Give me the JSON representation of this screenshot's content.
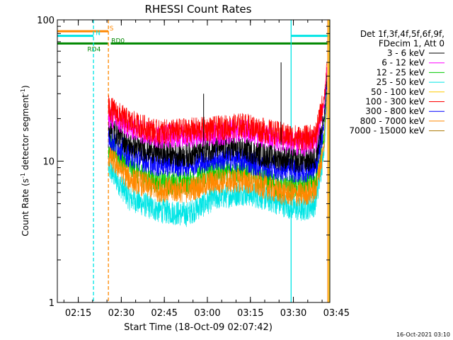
{
  "chart_data": {
    "type": "line",
    "title": "RHESSI Count Rates",
    "xlabel": "Start Time (18-Oct-09 02:07:42)",
    "ylabel": "Count Rate (s",
    "ylabel_sup": "-1",
    "ylabel_mid": " detector segment",
    "ylabel_sup2": "-1",
    "ylabel_end": ")",
    "y_scale": "log",
    "ylim": [
      1,
      100
    ],
    "xlim_minutes": [
      0,
      95
    ],
    "x_ticks": [
      {
        "label": "02:15",
        "minute": 7.3
      },
      {
        "label": "02:30",
        "minute": 22.3
      },
      {
        "label": "02:45",
        "minute": 37.3
      },
      {
        "label": "03:00",
        "minute": 52.3
      },
      {
        "label": "03:15",
        "minute": 67.3
      },
      {
        "label": "03:30",
        "minute": 82.3
      },
      {
        "label": "03:45",
        "minute": 97.3
      }
    ],
    "y_ticks": [
      {
        "label": "1",
        "value": 1
      },
      {
        "label": "10",
        "value": 10
      },
      {
        "label": "100",
        "value": 100
      }
    ],
    "legend_header": [
      "Det 1f,3f,4f,5f,6f,9f,",
      "FDecim 1, Att 0"
    ],
    "legend_placement": "right",
    "series": [
      {
        "name": "3 - 6 keV",
        "color": "#000000",
        "key_points": [
          [
            17.8,
            18
          ],
          [
            25,
            13
          ],
          [
            35,
            11.5
          ],
          [
            45,
            11
          ],
          [
            55,
            12.5
          ],
          [
            65,
            12.2
          ],
          [
            72,
            11
          ],
          [
            78,
            10.5
          ],
          [
            85,
            10
          ],
          [
            90,
            10.5
          ],
          [
            93,
            20
          ],
          [
            94,
            40
          ]
        ]
      },
      {
        "name": "6 - 12 keV",
        "color": "#ff00ff",
        "key_points": [
          [
            17.8,
            21
          ],
          [
            25,
            17.5
          ],
          [
            35,
            15
          ],
          [
            45,
            15.2
          ],
          [
            55,
            15.5
          ],
          [
            65,
            16.5
          ],
          [
            72,
            15
          ],
          [
            78,
            14
          ],
          [
            85,
            13
          ],
          [
            90,
            14
          ],
          [
            93,
            25
          ],
          [
            94,
            45
          ]
        ]
      },
      {
        "name": "12 - 25 keV",
        "color": "#00cc00",
        "key_points": [
          [
            17.8,
            13
          ],
          [
            25,
            9
          ],
          [
            35,
            7
          ],
          [
            45,
            7
          ],
          [
            55,
            8.5
          ],
          [
            65,
            8.5
          ],
          [
            72,
            7.5
          ],
          [
            78,
            6.5
          ],
          [
            85,
            6.5
          ],
          [
            90,
            7
          ],
          [
            93,
            15
          ],
          [
            94,
            30
          ]
        ]
      },
      {
        "name": "25 - 50 keV",
        "color": "#00e5e5",
        "key_points": [
          [
            17.8,
            9
          ],
          [
            25,
            5.5
          ],
          [
            35,
            4.5
          ],
          [
            45,
            4.2
          ],
          [
            55,
            5.5
          ],
          [
            65,
            6
          ],
          [
            72,
            5.5
          ],
          [
            78,
            5
          ],
          [
            85,
            4.5
          ],
          [
            90,
            5
          ],
          [
            93,
            12
          ],
          [
            94,
            25
          ]
        ]
      },
      {
        "name": "50 - 100 keV",
        "color": "#ffcc00",
        "key_points": []
      },
      {
        "name": "100 - 300 keV",
        "color": "#ff0000",
        "key_points": [
          [
            17.8,
            24
          ],
          [
            25,
            19
          ],
          [
            35,
            16
          ],
          [
            45,
            16.5
          ],
          [
            55,
            17
          ],
          [
            65,
            18
          ],
          [
            72,
            16.5
          ],
          [
            78,
            15.5
          ],
          [
            85,
            14.5
          ],
          [
            90,
            15
          ],
          [
            93,
            28
          ],
          [
            94,
            48
          ]
        ]
      },
      {
        "name": "300 - 800 keV",
        "color": "#0000ff",
        "key_points": [
          [
            17.8,
            15
          ],
          [
            25,
            11
          ],
          [
            35,
            9.5
          ],
          [
            45,
            9.5
          ],
          [
            55,
            10.5
          ],
          [
            65,
            10.2
          ],
          [
            72,
            9.2
          ],
          [
            78,
            8.8
          ],
          [
            85,
            8.5
          ],
          [
            90,
            9
          ],
          [
            93,
            18
          ],
          [
            94,
            35
          ]
        ]
      },
      {
        "name": "800 - 7000 keV",
        "color": "#ff8800",
        "key_points": [
          [
            17.8,
            11
          ],
          [
            25,
            7.5
          ],
          [
            35,
            6.3
          ],
          [
            45,
            6.2
          ],
          [
            55,
            7.2
          ],
          [
            65,
            7.3
          ],
          [
            72,
            6.6
          ],
          [
            78,
            6
          ],
          [
            85,
            5.8
          ],
          [
            90,
            6.2
          ],
          [
            93,
            13
          ],
          [
            94,
            28
          ]
        ]
      },
      {
        "name": "7000 - 15000 keV",
        "color": "#aa7700",
        "key_points": []
      }
    ],
    "attenuator_states": [
      {
        "label": "S",
        "color": "#ff8800",
        "value": 83,
        "x_range": [
          0,
          17.8
        ],
        "label_minute": 18.2
      },
      {
        "label": "N",
        "color": "#00e5e5",
        "value": 77,
        "x_range": [
          0,
          12.6
        ],
        "label_minute": 13.4
      },
      {
        "label": "N",
        "color": "#00e5e5",
        "value": 77,
        "x_range": [
          81.5,
          95
        ],
        "label_minute": null
      },
      {
        "label": "RD0",
        "color": "#008800",
        "value": 68,
        "x_range": [
          18.6,
          95
        ],
        "label_minute": 18.8
      },
      {
        "label": "RD4",
        "color": "#008800",
        "value": 68,
        "x_range": [
          0,
          17.6
        ],
        "label_minute": 12.8
      }
    ],
    "vertical_lines": [
      {
        "minute": 12.6,
        "color": "#00e5e5",
        "style": "dashed"
      },
      {
        "minute": 17.8,
        "color": "#ff8800",
        "style": "dashed"
      },
      {
        "minute": 81.5,
        "color": "#00e5e5",
        "style": "solid"
      },
      {
        "minute": 94.3,
        "color": "#ff8800",
        "style": "solid"
      },
      {
        "minute": 94.7,
        "color": "#ffcc00",
        "style": "solid"
      }
    ],
    "spikes": [
      {
        "minute": 51,
        "value": 30,
        "color": "#000000"
      },
      {
        "minute": 78,
        "value": 50,
        "color": "#000000"
      }
    ],
    "footer_timestamp": "16-Oct-2021 03:10"
  }
}
